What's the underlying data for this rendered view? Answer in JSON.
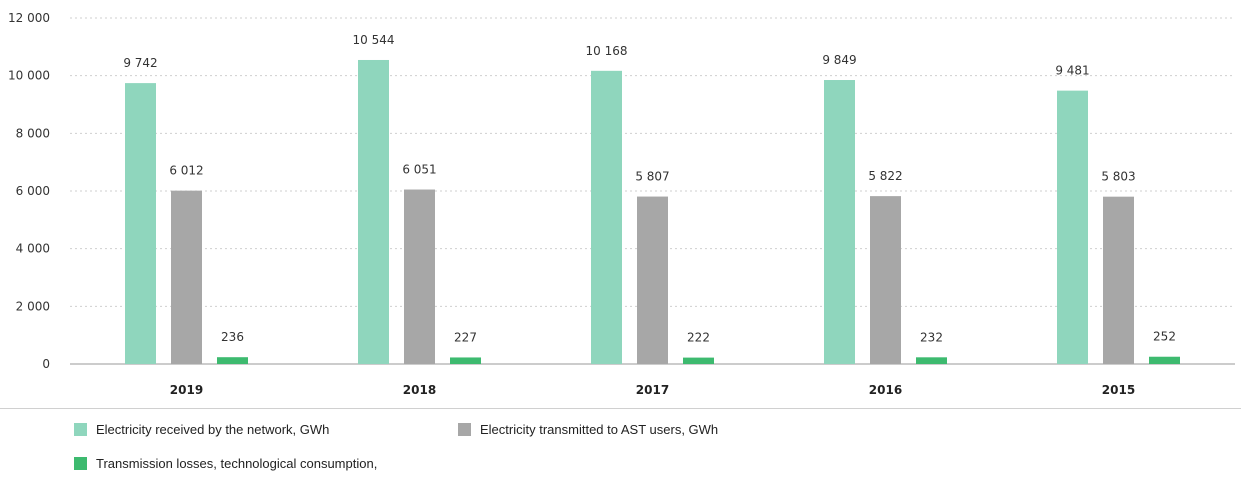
{
  "chart_data": {
    "type": "bar",
    "categories": [
      "2019",
      "2018",
      "2017",
      "2016",
      "2015"
    ],
    "series": [
      {
        "name": "Electricity received by the network, GWh",
        "color": "#8fd6bd",
        "values": [
          9742,
          10544,
          10168,
          9849,
          9481
        ],
        "labels": [
          "9 742",
          "10 544",
          "10 168",
          "9 849",
          "9 481"
        ]
      },
      {
        "name": "Electricity transmitted to AST users, GWh",
        "color": "#a7a7a7",
        "values": [
          6012,
          6051,
          5807,
          5822,
          5803
        ],
        "labels": [
          "6 012",
          "6 051",
          "5 807",
          "5 822",
          "5 803"
        ]
      },
      {
        "name": "Transmission losses, technological consumption,",
        "color": "#3dba6f",
        "values": [
          236,
          227,
          222,
          232,
          252
        ],
        "labels": [
          "236",
          "227",
          "222",
          "232",
          "252"
        ]
      }
    ],
    "yticks": [
      0,
      2000,
      4000,
      6000,
      8000,
      10000,
      12000
    ],
    "ytick_labels": [
      "0",
      "2 000",
      "4 000",
      "6 000",
      "8 000",
      "10 000",
      "12 000"
    ],
    "ylim": [
      0,
      12000
    ],
    "grid": true,
    "legend_position": "bottom-left"
  }
}
